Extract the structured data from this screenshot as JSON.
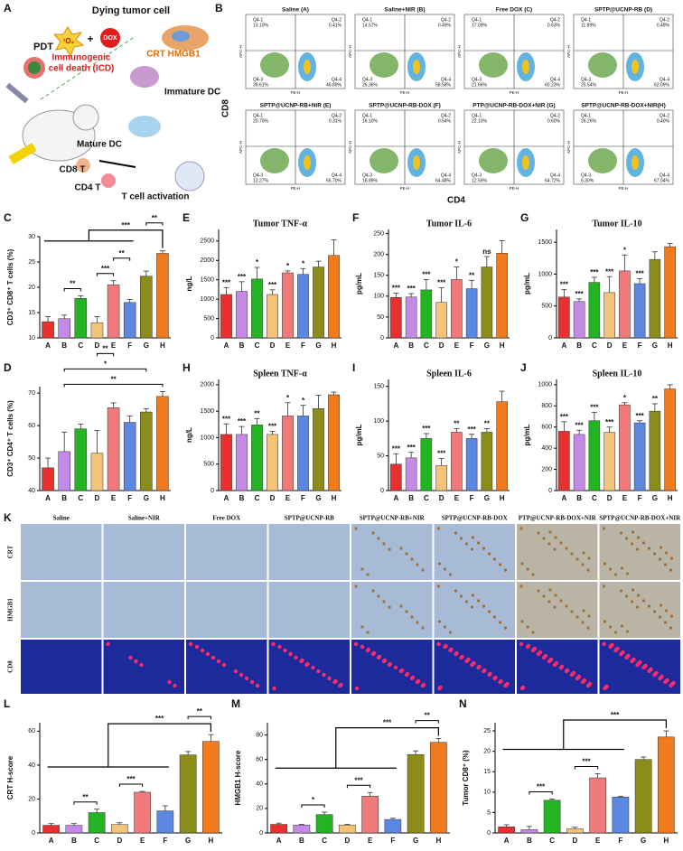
{
  "diagram": {
    "letter": "A",
    "texts": [
      "Dying tumor cell",
      "PDT",
      "¹O₂",
      "+",
      "DOX",
      "CRT HMGB1",
      "Immunogenic",
      "cell death (ICD)",
      "Immature DC",
      "Mature DC",
      "CD8 T",
      "CD4 T",
      "T cell activation"
    ]
  },
  "flow": {
    "letter": "B",
    "y_label": "CD8",
    "x_label": "CD4",
    "axis_y": "APC-H",
    "axis_x": "PE-H",
    "quadrants": [
      "Q4-1",
      "Q4-2",
      "Q4-3",
      "Q4-4"
    ],
    "plots": [
      {
        "title": "Saline (A)",
        "q": [
          "13.10%",
          "0.41%",
          "39.61%",
          "46.89%"
        ]
      },
      {
        "title": "Saline+NIR (B)",
        "q": [
          "14.57%",
          "0.49%",
          "26.36%",
          "58.58%"
        ]
      },
      {
        "title": "Free DOX (C)",
        "q": [
          "17.09%",
          "0.63%",
          "21.66%",
          "60.23%"
        ]
      },
      {
        "title": "SPTP@UCNP-RB (D)",
        "q": [
          "11.89%",
          "0.49%",
          "25.54%",
          "62.09%"
        ]
      },
      {
        "title": "SPTP@UCNP-RB+NIR (E)",
        "q": [
          "20.70%",
          "0.31%",
          "13.27%",
          "65.70%"
        ]
      },
      {
        "title": "SPTP@UCNP-RB-DOX (F)",
        "q": [
          "16.10%",
          "0.54%",
          "18.89%",
          "64.48%"
        ]
      },
      {
        "title": "PTP@UCNP-RB-DOX+NIR (G)",
        "q": [
          "22.10%",
          "0.60%",
          "12.59%",
          "64.72%"
        ]
      },
      {
        "title": "SPTP@UCNP-RB-DOX+NIR(H)",
        "q": [
          "26.26%",
          "0.40%",
          "6.30%",
          "67.04%"
        ]
      }
    ]
  },
  "ihc": {
    "letter": "K",
    "columns": [
      "Saline",
      "Saline+NIR",
      "Free DOX",
      "SPTP@UCNP-RB",
      "SPTP@UCNP-RB+NIR",
      "SPTP@UCNP-RB-DOX",
      "PTP@UCNP-RB-DOX+NIR",
      "SPTP@UCNP-RB-DOX+NIR"
    ],
    "rows": [
      "CRT",
      "HMGB1",
      "CD8"
    ]
  },
  "chart_data": [
    {
      "type": "bar",
      "label": "C",
      "ylabel": "CD3⁺ CD8⁺ T cells (%)",
      "categories": [
        "A",
        "B",
        "C",
        "D",
        "E",
        "F",
        "G",
        "H"
      ],
      "colors": [
        "#e8312f",
        "#c58ae8",
        "#22b422",
        "#f5c27a",
        "#f07a7a",
        "#5b87e0",
        "#8c8c1a",
        "#f07a1e"
      ],
      "values": [
        13.2,
        13.8,
        17.8,
        13,
        20.5,
        17,
        22.2,
        26.7
      ],
      "errors": [
        1,
        0.7,
        0.5,
        1.2,
        0.8,
        0.6,
        1,
        0.5
      ],
      "ylim": [
        10,
        30
      ],
      "yticks": [
        10,
        15,
        20,
        25,
        30
      ],
      "brackets": [
        "**",
        "***",
        "**",
        "***",
        "**"
      ]
    },
    {
      "type": "bar",
      "label": "E",
      "title": "Tumor TNF-α",
      "ylabel": "ng/L",
      "categories": [
        "A",
        "B",
        "C",
        "D",
        "E",
        "F",
        "G",
        "H"
      ],
      "colors": [
        "#e8312f",
        "#c58ae8",
        "#22b422",
        "#f5c27a",
        "#f07a7a",
        "#5b87e0",
        "#8c8c1a",
        "#f07a1e"
      ],
      "values": [
        1120,
        1200,
        1520,
        1120,
        1680,
        1640,
        1830,
        2130
      ],
      "errors": [
        180,
        250,
        300,
        120,
        50,
        150,
        150,
        400
      ],
      "ylim": [
        0,
        2800
      ],
      "yticks": [
        0,
        500,
        1000,
        1500,
        2000,
        2500
      ],
      "stars": [
        "***",
        "***",
        "*",
        "***",
        "*",
        "*",
        null,
        null
      ]
    },
    {
      "type": "bar",
      "label": "F",
      "title": "Tumor IL-6",
      "ylabel": "pg/mL",
      "categories": [
        "A",
        "B",
        "C",
        "D",
        "E",
        "F",
        "G",
        "H"
      ],
      "colors": [
        "#e8312f",
        "#c58ae8",
        "#22b422",
        "#f5c27a",
        "#f07a7a",
        "#5b87e0",
        "#8c8c1a",
        "#f07a1e"
      ],
      "values": [
        97,
        98,
        115,
        85,
        140,
        118,
        170,
        203
      ],
      "errors": [
        10,
        8,
        25,
        35,
        30,
        20,
        25,
        30
      ],
      "ylim": [
        0,
        260
      ],
      "yticks": [
        0,
        50,
        100,
        150,
        200,
        250
      ],
      "stars": [
        "***",
        "***",
        "***",
        "***",
        "*",
        "**",
        "ns",
        null
      ]
    },
    {
      "type": "bar",
      "label": "G",
      "title": "Tumor IL-10",
      "ylabel": "pg/mL",
      "categories": [
        "A",
        "B",
        "C",
        "D",
        "E",
        "F",
        "G",
        "H"
      ],
      "colors": [
        "#e8312f",
        "#c58ae8",
        "#22b422",
        "#f5c27a",
        "#f07a7a",
        "#5b87e0",
        "#8c8c1a",
        "#f07a1e"
      ],
      "values": [
        640,
        570,
        870,
        710,
        1050,
        850,
        1230,
        1430
      ],
      "errors": [
        120,
        40,
        80,
        250,
        250,
        80,
        120,
        50
      ],
      "ylim": [
        0,
        1700
      ],
      "yticks": [
        0,
        500,
        1000,
        1500
      ],
      "stars": [
        "***",
        "***",
        "***",
        "***",
        "*",
        "***",
        null,
        null
      ]
    },
    {
      "type": "bar",
      "label": "D",
      "ylabel": "CD3⁺ CD4⁺ T cells (%)",
      "categories": [
        "A",
        "B",
        "C",
        "D",
        "E",
        "F",
        "G",
        "H"
      ],
      "colors": [
        "#e8312f",
        "#c58ae8",
        "#22b422",
        "#f5c27a",
        "#f07a7a",
        "#5b87e0",
        "#8c8c1a",
        "#f07a1e"
      ],
      "values": [
        47,
        52,
        59,
        51.5,
        65.5,
        61,
        64.2,
        69
      ],
      "errors": [
        3,
        6,
        1.5,
        7,
        1.5,
        2,
        1,
        1.5
      ],
      "ylim": [
        40,
        72
      ],
      "yticks": [
        40,
        50,
        60,
        70
      ],
      "brackets": [
        "**",
        "*",
        "**"
      ]
    },
    {
      "type": "bar",
      "label": "H",
      "title": "Spleen TNF-α",
      "ylabel": "ng/L",
      "categories": [
        "A",
        "B",
        "C",
        "D",
        "E",
        "F",
        "G",
        "H"
      ],
      "colors": [
        "#e8312f",
        "#c58ae8",
        "#22b422",
        "#f5c27a",
        "#f07a7a",
        "#5b87e0",
        "#8c8c1a",
        "#f07a1e"
      ],
      "values": [
        1060,
        1060,
        1240,
        1060,
        1410,
        1410,
        1550,
        1810
      ],
      "errors": [
        200,
        150,
        120,
        60,
        250,
        200,
        250,
        50
      ],
      "ylim": [
        0,
        2100
      ],
      "yticks": [
        0,
        500,
        1000,
        1500,
        2000
      ],
      "stars": [
        "***",
        "***",
        "**",
        "***",
        "*",
        "*",
        null,
        null
      ]
    },
    {
      "type": "bar",
      "label": "I",
      "title": "Spleen IL-6",
      "ylabel": "pg/mL",
      "categories": [
        "A",
        "B",
        "C",
        "D",
        "E",
        "F",
        "G",
        "H"
      ],
      "colors": [
        "#e8312f",
        "#c58ae8",
        "#22b422",
        "#f5c27a",
        "#f07a7a",
        "#5b87e0",
        "#8c8c1a",
        "#f07a1e"
      ],
      "values": [
        38,
        47,
        75,
        36,
        84,
        75,
        84,
        128
      ],
      "errors": [
        15,
        8,
        7,
        10,
        5,
        6,
        5,
        15
      ],
      "ylim": [
        0,
        160
      ],
      "yticks": [
        0,
        50,
        100,
        150
      ],
      "stars": [
        "***",
        "***",
        "***",
        "***",
        "**",
        "***",
        "**",
        null
      ]
    },
    {
      "type": "bar",
      "label": "J",
      "title": "Spleen IL-10",
      "ylabel": "pg/mL",
      "categories": [
        "A",
        "B",
        "C",
        "D",
        "E",
        "F",
        "G",
        "H"
      ],
      "colors": [
        "#e8312f",
        "#c58ae8",
        "#22b422",
        "#f5c27a",
        "#f07a7a",
        "#5b87e0",
        "#8c8c1a",
        "#f07a1e"
      ],
      "values": [
        560,
        530,
        660,
        550,
        810,
        640,
        750,
        960
      ],
      "errors": [
        90,
        40,
        80,
        50,
        20,
        20,
        70,
        40
      ],
      "ylim": [
        0,
        1050
      ],
      "yticks": [
        0,
        200,
        400,
        600,
        800,
        1000
      ],
      "stars": [
        "***",
        "***",
        "***",
        "***",
        "*",
        "***",
        "**",
        null
      ]
    },
    {
      "type": "bar",
      "label": "L",
      "ylabel": "CRT H-score",
      "categories": [
        "A",
        "B",
        "C",
        "D",
        "E",
        "F",
        "G",
        "H"
      ],
      "colors": [
        "#e8312f",
        "#c58ae8",
        "#22b422",
        "#f5c27a",
        "#f07a7a",
        "#5b87e0",
        "#8c8c1a",
        "#f07a1e"
      ],
      "values": [
        4.5,
        4.5,
        12,
        5,
        24,
        13,
        46,
        54
      ],
      "errors": [
        1,
        1,
        2,
        1,
        0.5,
        3,
        2,
        4
      ],
      "ylim": [
        0,
        65
      ],
      "yticks": [
        0,
        20,
        40,
        60
      ],
      "brackets": [
        "**",
        "***",
        "***",
        "**"
      ]
    },
    {
      "type": "bar",
      "label": "M",
      "ylabel": "HMGB1 H-score",
      "categories": [
        "A",
        "B",
        "C",
        "D",
        "E",
        "F",
        "G",
        "H"
      ],
      "colors": [
        "#e8312f",
        "#c58ae8",
        "#22b422",
        "#f5c27a",
        "#f07a7a",
        "#5b87e0",
        "#8c8c1a",
        "#f07a1e"
      ],
      "values": [
        7,
        6.5,
        15,
        6.5,
        30,
        11,
        64,
        74
      ],
      "errors": [
        1,
        0.5,
        2,
        0.5,
        3,
        1,
        3,
        3
      ],
      "ylim": [
        0,
        90
      ],
      "yticks": [
        0,
        20,
        40,
        60,
        80
      ],
      "brackets": [
        "*",
        "***",
        "***",
        "**"
      ]
    },
    {
      "type": "bar",
      "label": "N",
      "ylabel": "Tumor CD8⁺ (%)",
      "categories": [
        "A",
        "B",
        "C",
        "D",
        "E",
        "F",
        "G",
        "H"
      ],
      "colors": [
        "#e8312f",
        "#c58ae8",
        "#22b422",
        "#f5c27a",
        "#f07a7a",
        "#5b87e0",
        "#8c8c1a",
        "#f07a1e"
      ],
      "values": [
        1.5,
        0.8,
        8,
        1,
        13.5,
        8.8,
        18,
        23.5
      ],
      "errors": [
        0.5,
        0.8,
        0.3,
        0.4,
        1,
        0.2,
        0.6,
        1.5
      ],
      "ylim": [
        0,
        27
      ],
      "yticks": [
        0,
        5,
        10,
        15,
        20,
        25
      ],
      "brackets": [
        "***",
        "***",
        "***"
      ]
    }
  ]
}
